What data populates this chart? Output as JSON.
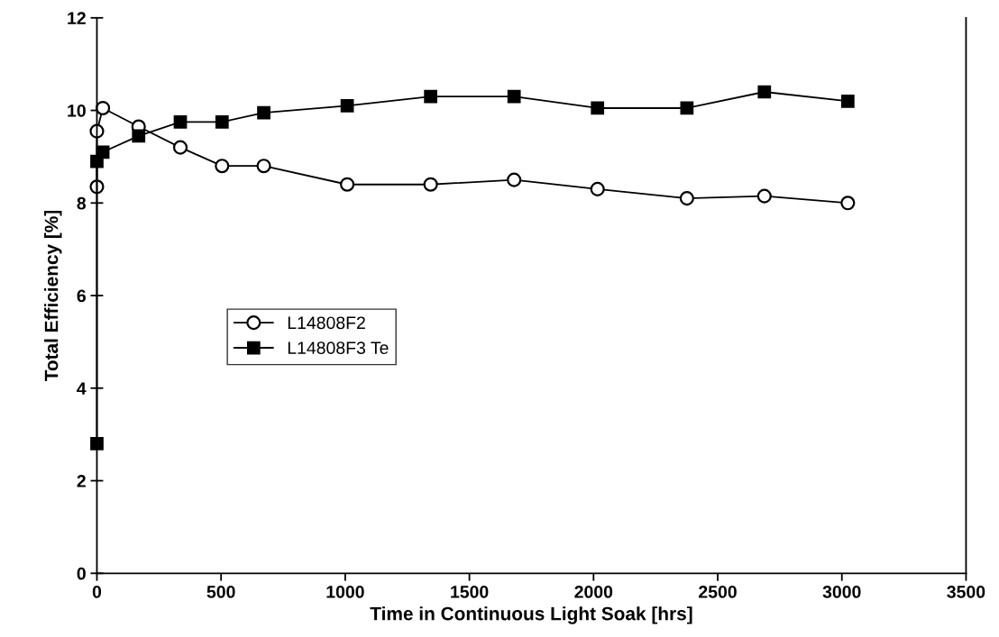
{
  "chart_data": {
    "type": "line",
    "xlabel": "Time in Continuous Light Soak [hrs]",
    "ylabel": "Total Efficiency [%]",
    "xlim": [
      0,
      3500
    ],
    "xticks": [
      0,
      500,
      1000,
      1500,
      2000,
      2500,
      3000,
      3500
    ],
    "ylim": [
      0,
      12
    ],
    "yticks": [
      0,
      2,
      4,
      6,
      8,
      10,
      12
    ],
    "grid": false,
    "legend": "left",
    "line_style": "solid",
    "series": [
      {
        "name": "L14808F2",
        "color": "#000000",
        "marker": "circle",
        "x": [
          0,
          0,
          24,
          168,
          336,
          504,
          672,
          1008,
          1344,
          1680,
          2016,
          2376,
          2688,
          3024
        ],
        "values": [
          8.35,
          9.55,
          10.05,
          9.65,
          9.2,
          8.8,
          8.8,
          8.4,
          8.4,
          8.5,
          8.3,
          8.1,
          8.15,
          8.0
        ]
      },
      {
        "name": "L14808F3 Te",
        "color": "#000000",
        "marker": "square",
        "x": [
          0,
          0,
          24,
          168,
          336,
          504,
          672,
          1008,
          1344,
          1680,
          2016,
          2376,
          2688,
          3024
        ],
        "values": [
          2.8,
          8.9,
          9.1,
          9.45,
          9.75,
          9.75,
          9.95,
          10.1,
          10.3,
          10.3,
          10.05,
          10.05,
          10.4,
          10.2
        ]
      }
    ]
  }
}
